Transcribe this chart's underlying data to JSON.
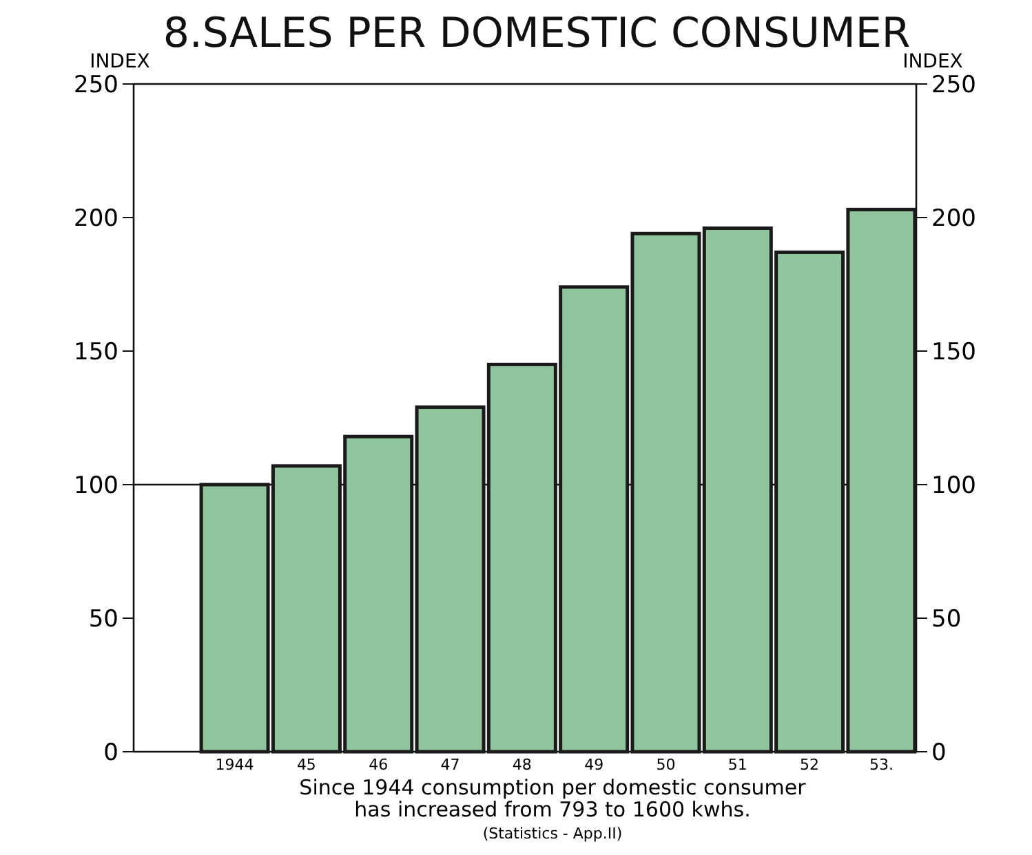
{
  "chart_data": {
    "type": "bar",
    "title": "8.SALES PER DOMESTIC CONSUMER",
    "ylabel": "INDEX",
    "y2label": "INDEX",
    "categories": [
      "1944",
      "45",
      "46",
      "47",
      "48",
      "49",
      "50",
      "51",
      "52",
      "53."
    ],
    "values": [
      100,
      107,
      118,
      129,
      145,
      174,
      194,
      196,
      187,
      203
    ],
    "color": "#8fc49c",
    "ylim": [
      0,
      250
    ],
    "yticks": [
      0,
      50,
      100,
      150,
      200,
      250
    ],
    "y2lim": [
      0,
      250
    ],
    "y2ticks": [
      0,
      50,
      100,
      150,
      200,
      250
    ],
    "ref_lines": [
      {
        "axis": "y",
        "value": 100
      }
    ],
    "annotations": [
      "Since 1944 consumption per domestic consumer",
      "has increased from 793 to 1600 kwhs.",
      "(Statistics - App.II)"
    ]
  }
}
